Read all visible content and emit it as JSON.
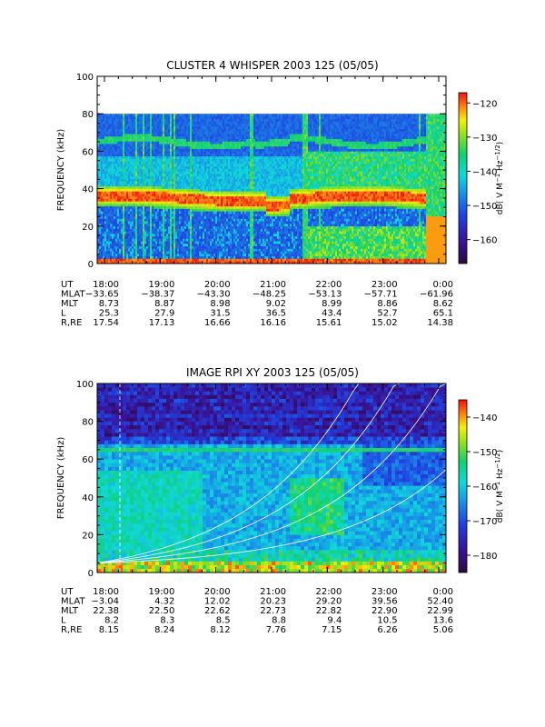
{
  "chart_data": [
    {
      "type": "heatmap",
      "title": "CLUSTER 4 WHISPER 2003 125 (05/05)",
      "ylabel": "FREQUENCY (kHz)",
      "ylim": [
        0,
        100
      ],
      "yticks": [
        "0",
        "20",
        "40",
        "60",
        "80",
        "100"
      ],
      "data_ylim": [
        0,
        80
      ],
      "xlim": [
        "18:00",
        "0:00"
      ],
      "colorbar": {
        "label": "dB( V M^-1 Hz^-1/2)",
        "range": [
          -167,
          -117
        ],
        "ticks": [
          "-120",
          "-130",
          "-140",
          "-150",
          "-160"
        ]
      },
      "bands": [
        {
          "feature": "plasma line",
          "y_kHz": 35,
          "note": "red band roughly 30-40 kHz throughout"
        },
        {
          "feature": "upper line",
          "y_kHz": 65,
          "note": "cyan/yellow wavy line near 62-68 kHz"
        }
      ],
      "ephemeris": {
        "labels": [
          "UT",
          "MLAT",
          "MLT",
          "L",
          "R,RE"
        ],
        "columns": [
          {
            "UT": "18:00",
            "MLAT": "-33.65",
            "MLT": "8.73",
            "L": "25.3",
            "R,RE": "17.54"
          },
          {
            "UT": "19:00",
            "MLAT": "-38.37",
            "MLT": "8.87",
            "L": "27.9",
            "R,RE": "17.13"
          },
          {
            "UT": "20:00",
            "MLAT": "-43.30",
            "MLT": "8.98",
            "L": "31.5",
            "R,RE": "16.66"
          },
          {
            "UT": "21:00",
            "MLAT": "-48.25",
            "MLT": "9.02",
            "L": "36.5",
            "R,RE": "16.16"
          },
          {
            "UT": "22:00",
            "MLAT": "-53.13",
            "MLT": "8.99",
            "L": "43.4",
            "R,RE": "15.61"
          },
          {
            "UT": "23:00",
            "MLAT": "-57.71",
            "MLT": "8.86",
            "L": "52.7",
            "R,RE": "15.02"
          },
          {
            "UT": "0:00",
            "MLAT": "-61.96",
            "MLT": "8.62",
            "L": "65.1",
            "R,RE": "14.38"
          }
        ]
      }
    },
    {
      "type": "heatmap",
      "title": "IMAGE RPI XY 2003 125 (05/05)",
      "ylabel": "FREQUENCY (kHz)",
      "ylim": [
        0,
        100
      ],
      "yticks": [
        "0",
        "20",
        "40",
        "60",
        "80",
        "100"
      ],
      "xlim": [
        "18:00",
        "0:00"
      ],
      "colorbar": {
        "label": "dB( V M^-1 Hz^-1/2)",
        "range": [
          -185,
          -135
        ],
        "ticks": [
          "-140",
          "-150",
          "-160",
          "-170",
          "-180"
        ]
      },
      "bands": [
        {
          "feature": "upper line",
          "y_kHz": 65,
          "note": "green horizontal line near 65 kHz"
        }
      ],
      "ephemeris": {
        "labels": [
          "UT",
          "MLAT",
          "MLT",
          "L",
          "R,RE"
        ],
        "columns": [
          {
            "UT": "18:00",
            "MLAT": "-3.04",
            "MLT": "22.38",
            "L": "8.2",
            "R,RE": "8.15"
          },
          {
            "UT": "19:00",
            "MLAT": "4.32",
            "MLT": "22.50",
            "L": "8.3",
            "R,RE": "8.24"
          },
          {
            "UT": "20:00",
            "MLAT": "12.02",
            "MLT": "22.62",
            "L": "8.5",
            "R,RE": "8.12"
          },
          {
            "UT": "21:00",
            "MLAT": "20.23",
            "MLT": "22.73",
            "L": "8.8",
            "R,RE": "7.76"
          },
          {
            "UT": "22:00",
            "MLAT": "29.20",
            "MLT": "22.82",
            "L": "9.4",
            "R,RE": "7.15"
          },
          {
            "UT": "23:00",
            "MLAT": "39.56",
            "MLT": "22.90",
            "L": "10.5",
            "R,RE": "6.26"
          },
          {
            "UT": "0:00",
            "MLAT": "52.40",
            "MLT": "22.99",
            "L": "13.6",
            "R,RE": "5.06"
          }
        ]
      }
    }
  ]
}
